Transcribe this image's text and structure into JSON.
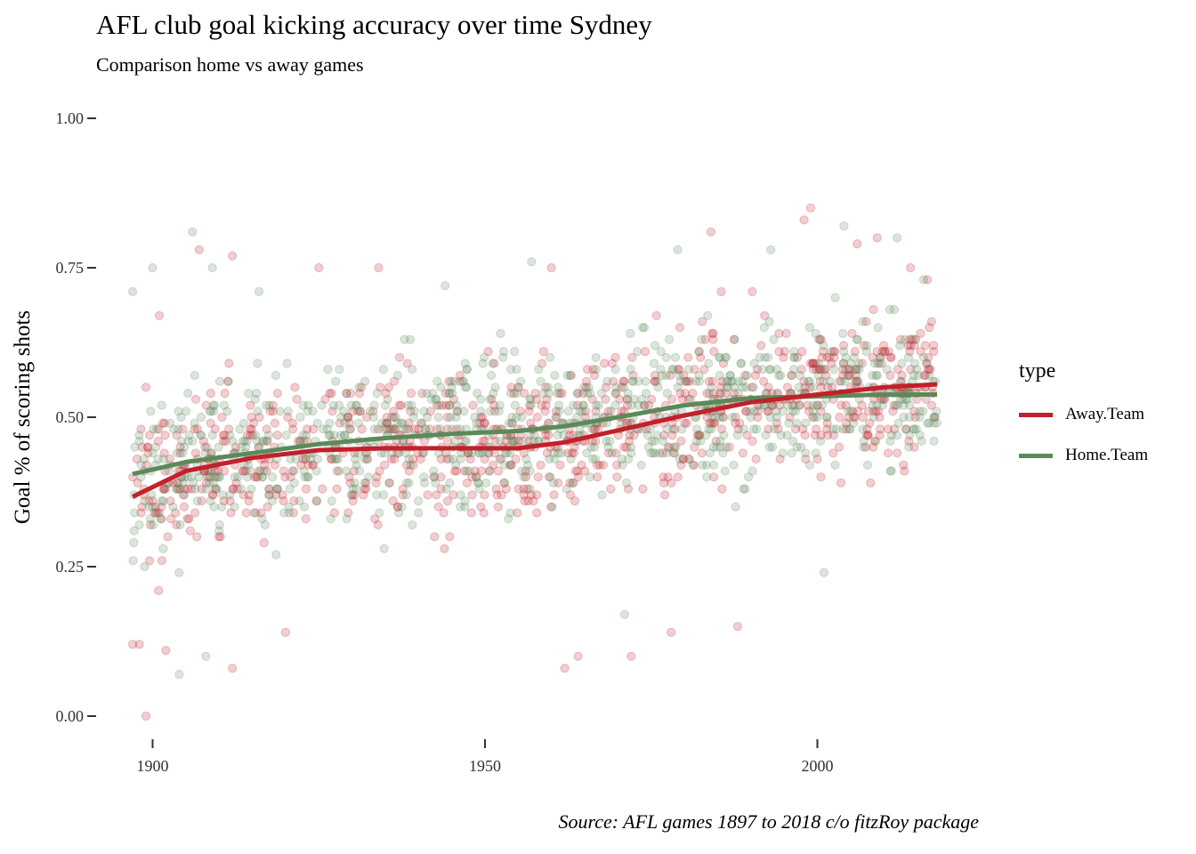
{
  "chart_data": {
    "type": "scatter",
    "title": "AFL club goal kicking accuracy over time Sydney",
    "subtitle": "Comparison home vs away games",
    "caption": "Source: AFL games 1897 to 2018 c/o fitzRoy package",
    "xlabel": "",
    "ylabel": "Goal % of scoring shots",
    "xlim": [
      1897,
      2018
    ],
    "ylim": [
      0,
      1
    ],
    "x_ticks": [
      1900,
      1950,
      2000
    ],
    "y_ticks": [
      0,
      0.25,
      0.5,
      0.75,
      1
    ],
    "y_tick_labels": [
      "0.00",
      "0.25",
      "0.50",
      "0.75",
      "1.00"
    ],
    "grid": false,
    "legend": {
      "title": "type",
      "placement": "right"
    },
    "series": [
      {
        "name": "Away.Team",
        "color": "#c0212b",
        "point_opacity": 0.22,
        "point_count": 900,
        "smooth": {
          "x": [
            1897,
            1905,
            1915,
            1925,
            1935,
            1945,
            1955,
            1962,
            1970,
            1980,
            1990,
            2000,
            2010,
            2018
          ],
          "y": [
            0.367,
            0.41,
            0.432,
            0.445,
            0.448,
            0.448,
            0.448,
            0.458,
            0.478,
            0.503,
            0.525,
            0.538,
            0.55,
            0.555
          ]
        },
        "points_sample": [
          [
            1897,
            0.12
          ],
          [
            1898,
            0.12
          ],
          [
            1899,
            0.0
          ],
          [
            1899,
            0.55
          ],
          [
            1901,
            0.67
          ],
          [
            1902,
            0.11
          ],
          [
            1907,
            0.78
          ],
          [
            1912,
            0.77
          ],
          [
            1912,
            0.08
          ],
          [
            1920,
            0.14
          ],
          [
            1925,
            0.75
          ],
          [
            1934,
            0.75
          ],
          [
            1960,
            0.75
          ],
          [
            1962,
            0.08
          ],
          [
            1964,
            0.1
          ],
          [
            1972,
            0.1
          ],
          [
            1978,
            0.14
          ],
          [
            1984,
            0.81
          ],
          [
            1988,
            0.15
          ],
          [
            1998,
            0.83
          ],
          [
            1999,
            0.85
          ],
          [
            2006,
            0.79
          ],
          [
            2009,
            0.8
          ],
          [
            2014,
            0.75
          ]
        ]
      },
      {
        "name": "Home.Team",
        "color": "#5a8a5a",
        "point_opacity": 0.22,
        "point_count": 900,
        "smooth": {
          "x": [
            1897,
            1905,
            1915,
            1925,
            1935,
            1945,
            1955,
            1962,
            1970,
            1980,
            1990,
            2000,
            2010,
            2018
          ],
          "y": [
            0.405,
            0.425,
            0.44,
            0.455,
            0.465,
            0.472,
            0.477,
            0.485,
            0.5,
            0.52,
            0.532,
            0.535,
            0.538,
            0.538
          ]
        },
        "points_sample": [
          [
            1897,
            0.71
          ],
          [
            1900,
            0.75
          ],
          [
            1904,
            0.07
          ],
          [
            1906,
            0.81
          ],
          [
            1908,
            0.1
          ],
          [
            1909,
            0.75
          ],
          [
            1916,
            0.71
          ],
          [
            1944,
            0.72
          ],
          [
            1957,
            0.76
          ],
          [
            1971,
            0.17
          ],
          [
            1979,
            0.78
          ],
          [
            1993,
            0.78
          ],
          [
            2001,
            0.24
          ],
          [
            2004,
            0.82
          ],
          [
            2012,
            0.8
          ],
          [
            2016,
            0.73
          ]
        ]
      }
    ]
  }
}
